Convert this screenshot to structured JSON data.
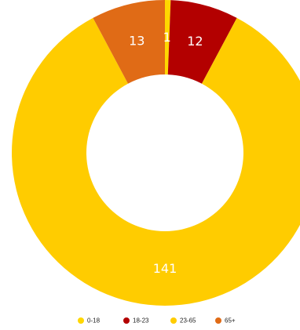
{
  "chart_data": {
    "type": "pie",
    "donut": true,
    "legend_position": "bottom",
    "categories": [
      "0-18",
      "18-23",
      "23-65",
      "65+"
    ],
    "values": [
      1,
      12,
      141,
      13
    ],
    "colors": [
      "#FFD700",
      "#B30000",
      "#FFCC00",
      "#E06B16"
    ],
    "data_labels": [
      "1",
      "12",
      "141",
      "13"
    ]
  }
}
